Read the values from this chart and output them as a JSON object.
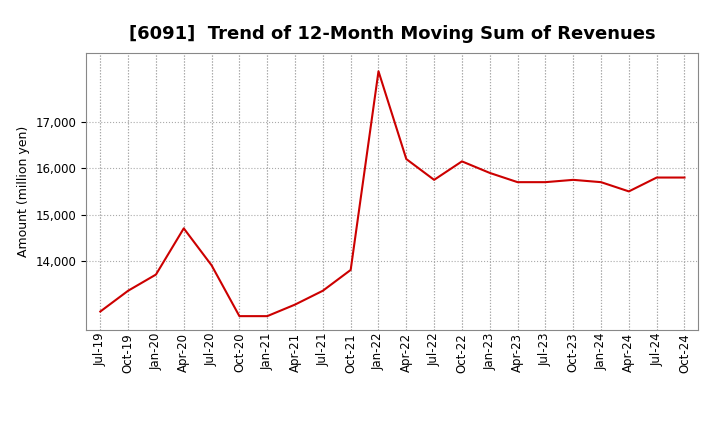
{
  "title": "[6091]  Trend of 12-Month Moving Sum of Revenues",
  "ylabel": "Amount (million yen)",
  "line_color": "#cc0000",
  "line_width": 1.5,
  "background_color": "#ffffff",
  "grid_color": "#aaaaaa",
  "tick_labels": [
    "Jul-19",
    "Oct-19",
    "Jan-20",
    "Apr-20",
    "Jul-20",
    "Oct-20",
    "Jan-21",
    "Apr-21",
    "Jul-21",
    "Oct-21",
    "Jan-22",
    "Apr-22",
    "Jul-22",
    "Oct-22",
    "Jan-23",
    "Apr-23",
    "Jul-23",
    "Oct-23",
    "Jan-24",
    "Apr-24",
    "Jul-24",
    "Oct-24"
  ],
  "values": [
    12900,
    13350,
    13700,
    14700,
    13900,
    12800,
    12800,
    13050,
    13350,
    13800,
    18100,
    16200,
    15750,
    16150,
    15900,
    15700,
    15700,
    15750,
    15700,
    15500,
    15800,
    15800
  ],
  "ylim": [
    12500,
    18500
  ],
  "yticks": [
    14000,
    15000,
    16000,
    17000
  ],
  "title_fontsize": 13,
  "axis_fontsize": 9,
  "tick_fontsize": 8.5
}
